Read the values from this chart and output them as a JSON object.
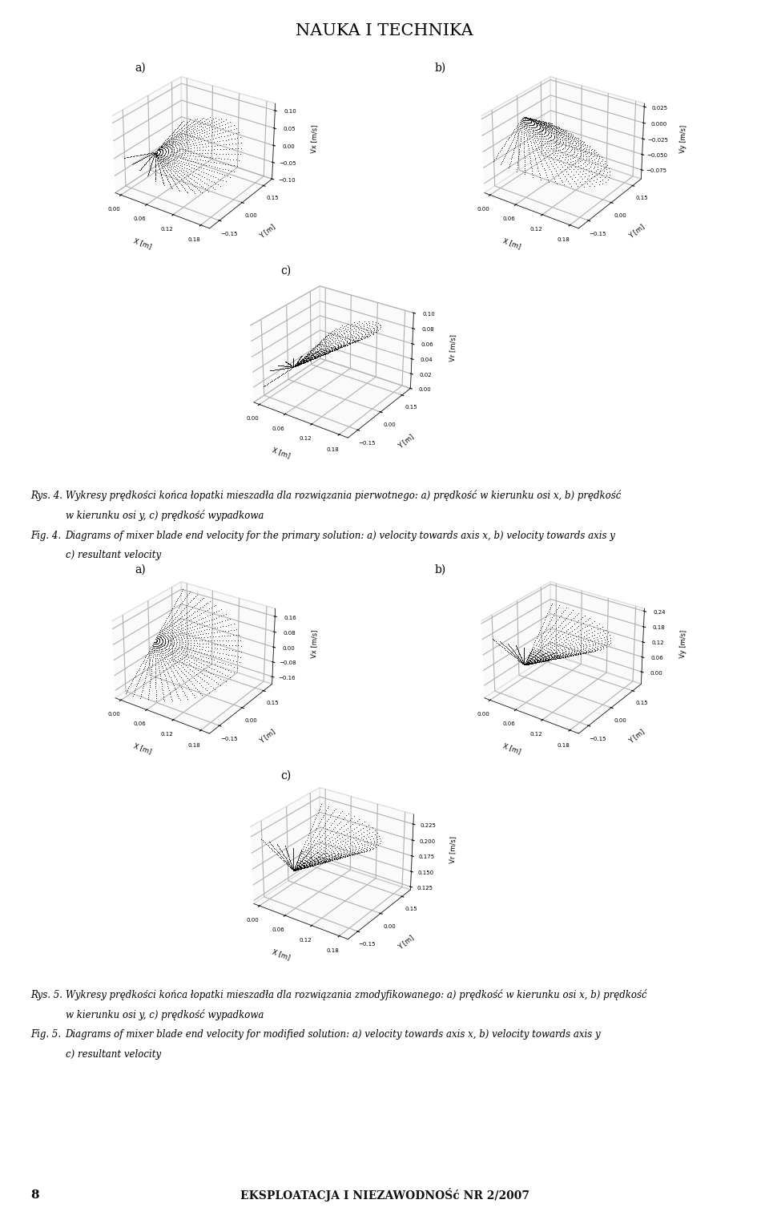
{
  "header_title": "NAUKA I TECHNIKA",
  "background_color": "#ffffff",
  "text_color": "#000000",
  "footer_page": "8",
  "footer_text": "EKSPLOATACJA I NIEZAWODNOŚć NR 2/2007",
  "fig4_rys": "Rys. 4.",
  "fig4_pl1": "Wykresy prędkości końca łopatki mieszadła dla rozwiązania pierwotnego: a) prędkość w kierunku osi x, b) prędkość",
  "fig4_pl2": "w kierunku osi y, c) prędkość wypadkowa",
  "fig4_fig": "Fig. 4.",
  "fig4_en1": "Diagrams of mixer blade end velocity for the primary solution: a) velocity towards axis x, b) velocity towards axis y",
  "fig4_en2": "c) resultant velocity",
  "fig5_rys": "Rys. 5.",
  "fig5_pl1": "Wykresy prędkości końca łopatki mieszadła dla rozwiązania zmodyfikowanego: a) prędkość w kierunku osi x, b) prędkość",
  "fig5_pl2": "w kierunku osi y, c) prędkość wypadkowa",
  "fig5_fig": "Fig. 5.",
  "fig5_en1": "Diagrams of mixer blade end velocity for modified solution: a) velocity towards axis x, b) velocity towards axis y",
  "fig5_en2": "c) resultant velocity",
  "r_outer": 0.185,
  "r_inner": 0.005,
  "n_r": 30,
  "n_theta": 35,
  "dot_size": 1.5,
  "elev": 28,
  "azim": -55
}
